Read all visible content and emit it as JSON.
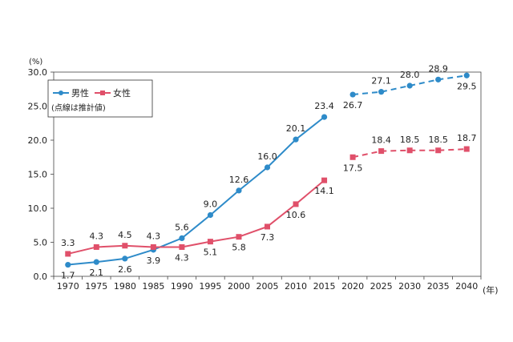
{
  "chart_data": {
    "type": "line",
    "y_unit_label": "(%)",
    "x_unit_label": "(年)",
    "ylim": [
      0,
      30
    ],
    "y_ticks": [
      "0.0",
      "5.0",
      "10.0",
      "15.0",
      "20.0",
      "25.0",
      "30.0"
    ],
    "categories": [
      "1970",
      "1975",
      "1980",
      "1985",
      "1990",
      "1995",
      "2000",
      "2005",
      "2010",
      "2015",
      "2020",
      "2025",
      "2030",
      "2035",
      "2040"
    ],
    "actual_last_index": 9,
    "legend_note": "(点線は推計値)",
    "legend_position": "top-left",
    "series": [
      {
        "name": "男性",
        "color": "#2e8bc9",
        "marker": "circle",
        "values": [
          1.7,
          2.1,
          2.6,
          3.9,
          5.6,
          9.0,
          12.6,
          16.0,
          20.1,
          23.4,
          26.7,
          27.1,
          28.0,
          28.9,
          29.5
        ],
        "labels": [
          "1.7",
          "2.1",
          "2.6",
          "3.9",
          "5.6",
          "9.0",
          "12.6",
          "16.0",
          "20.1",
          "23.4",
          "26.7",
          "27.1",
          "28.0",
          "28.9",
          "29.5"
        ]
      },
      {
        "name": "女性",
        "color": "#e0506a",
        "marker": "square",
        "values": [
          3.3,
          4.3,
          4.5,
          4.3,
          4.3,
          5.1,
          5.8,
          7.3,
          10.6,
          14.1,
          17.5,
          18.4,
          18.5,
          18.5,
          18.7
        ],
        "labels": [
          "3.3",
          "4.3",
          "4.5",
          "4.3",
          "4.3",
          "5.1",
          "5.8",
          "7.3",
          "10.6",
          "14.1",
          "17.5",
          "18.4",
          "18.5",
          "18.5",
          "18.7"
        ]
      }
    ]
  }
}
